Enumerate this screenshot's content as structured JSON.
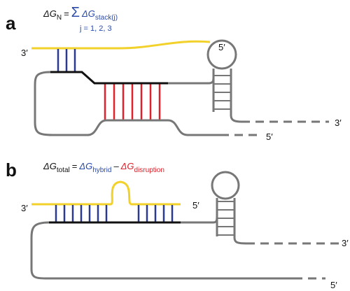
{
  "panels": [
    {
      "label": "a",
      "formula": {
        "lhs": "ΔG",
        "lhs_sub": "N",
        "equals": "=",
        "sum": "Σ",
        "term": "ΔG",
        "term_sub": "stack(j)",
        "sum_index": "j = 1, 2, 3"
      },
      "ends": [
        "3′",
        "5′",
        "3′",
        "5′"
      ]
    },
    {
      "label": "b",
      "formula": {
        "lhs": "ΔG",
        "lhs_sub": "total",
        "equals": "=",
        "term1": "ΔG",
        "term1_sub": "hybrid",
        "minus": "–",
        "term2": "ΔG",
        "term2_sub": "disruption"
      },
      "ends": [
        "3′",
        "5′",
        "3′",
        "5′"
      ]
    }
  ]
}
